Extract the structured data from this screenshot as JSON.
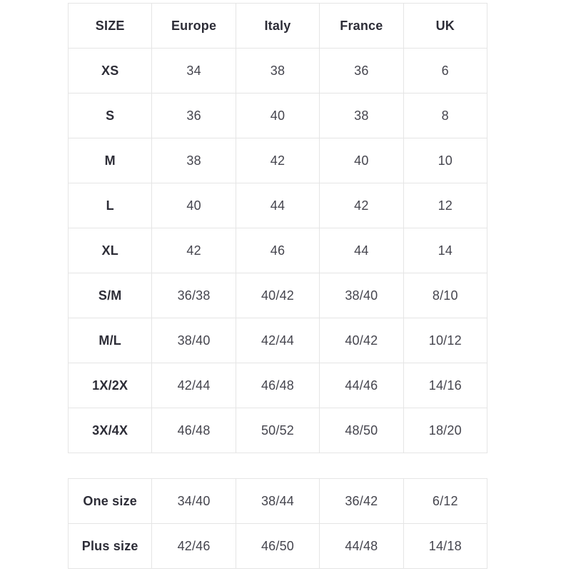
{
  "colors": {
    "background": "#ffffff",
    "border": "#e5e5e5",
    "header_text": "#2d2d37",
    "value_text": "#45454e"
  },
  "table1": {
    "headers": [
      "SIZE",
      "Europe",
      "Italy",
      "France",
      "UK"
    ],
    "rows": [
      [
        "XS",
        "34",
        "38",
        "36",
        "6"
      ],
      [
        "S",
        "36",
        "40",
        "38",
        "8"
      ],
      [
        "M",
        "38",
        "42",
        "40",
        "10"
      ],
      [
        "L",
        "40",
        "44",
        "42",
        "12"
      ],
      [
        "XL",
        "42",
        "46",
        "44",
        "14"
      ],
      [
        "S/M",
        "36/38",
        "40/42",
        "38/40",
        "8/10"
      ],
      [
        "M/L",
        "38/40",
        "42/44",
        "40/42",
        "10/12"
      ],
      [
        "1X/2X",
        "42/44",
        "46/48",
        "44/46",
        "14/16"
      ],
      [
        "3X/4X",
        "46/48",
        "50/52",
        "48/50",
        "18/20"
      ]
    ]
  },
  "table2": {
    "rows": [
      [
        "One size",
        "34/40",
        "38/44",
        "36/42",
        "6/12"
      ],
      [
        "Plus size",
        "42/46",
        "46/50",
        "44/48",
        "14/18"
      ]
    ]
  },
  "chart_data": [
    {
      "type": "table",
      "columns": [
        "SIZE",
        "Europe",
        "Italy",
        "France",
        "UK"
      ],
      "rows": [
        [
          "XS",
          "34",
          "38",
          "36",
          "6"
        ],
        [
          "S",
          "36",
          "40",
          "38",
          "8"
        ],
        [
          "M",
          "38",
          "42",
          "40",
          "10"
        ],
        [
          "L",
          "40",
          "44",
          "42",
          "12"
        ],
        [
          "XL",
          "42",
          "46",
          "44",
          "14"
        ],
        [
          "S/M",
          "36/38",
          "40/42",
          "38/40",
          "8/10"
        ],
        [
          "M/L",
          "38/40",
          "42/44",
          "40/42",
          "10/12"
        ],
        [
          "1X/2X",
          "42/44",
          "46/48",
          "44/46",
          "14/16"
        ],
        [
          "3X/4X",
          "46/48",
          "50/52",
          "48/50",
          "18/20"
        ]
      ],
      "layout": {
        "grid": true,
        "header_bold": true,
        "first_column_bold": true
      }
    },
    {
      "type": "table",
      "columns": [],
      "rows": [
        [
          "One size",
          "34/40",
          "38/44",
          "36/42",
          "6/12"
        ],
        [
          "Plus size",
          "42/46",
          "46/50",
          "44/48",
          "14/18"
        ]
      ],
      "layout": {
        "grid": true,
        "no_header_row": true,
        "first_column_bold": true
      }
    }
  ]
}
